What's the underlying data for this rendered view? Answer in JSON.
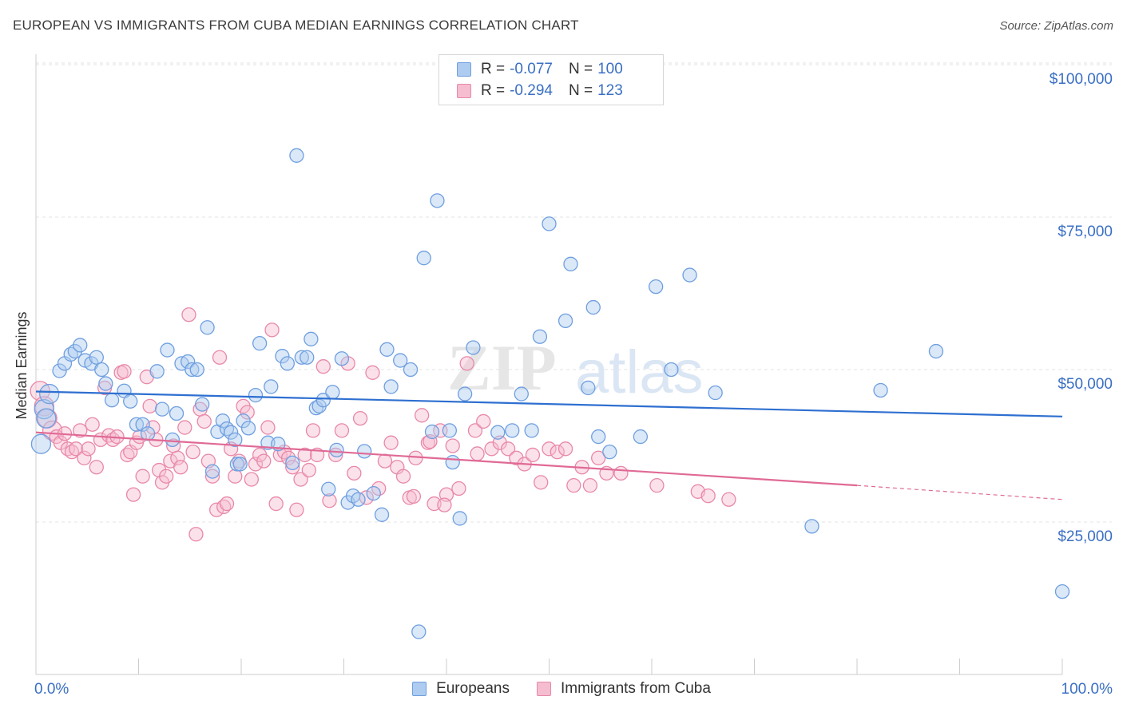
{
  "title": "EUROPEAN VS IMMIGRANTS FROM CUBA MEDIAN EARNINGS CORRELATION CHART",
  "source": "Source: ZipAtlas.com",
  "watermark": {
    "part1": "ZIP",
    "part2": "atlas"
  },
  "colors": {
    "blue": "#6f9fe0",
    "blue_fill": "#aecbf0",
    "blue_line": "#2e6fd0",
    "pink": "#e888a8",
    "pink_fill": "#f6bdd0",
    "pink_line": "#e06a95",
    "axis_label": "#3a6fc4",
    "grid": "#e3e3e3"
  },
  "legend": {
    "rows": [
      {
        "r_label": "R = ",
        "r_value": "-0.077",
        "n_label": "N = ",
        "n_value": "100",
        "color": "#aecbf0",
        "border": "#6f9fe0"
      },
      {
        "r_label": "R = ",
        "r_value": "-0.294",
        "n_label": "N = ",
        "n_value": "123",
        "color": "#f6bdd0",
        "border": "#e888a8"
      }
    ]
  },
  "chart_data": {
    "type": "scatter",
    "title": "EUROPEAN VS IMMIGRANTS FROM CUBA MEDIAN EARNINGS CORRELATION CHART",
    "xlabel": "",
    "ylabel": "Median Earnings",
    "xlim": [
      0,
      100
    ],
    "ylim": [
      0,
      105000
    ],
    "x_tick_labels": [
      "0.0%",
      "100.0%"
    ],
    "y_ticks": [
      25000,
      50000,
      75000,
      100000
    ],
    "y_tick_labels": [
      "$25,000",
      "$50,000",
      "$75,000",
      "$100,000"
    ],
    "grid": true,
    "legend_position": "top-center",
    "series": [
      {
        "name": "Europeans",
        "color": "#6f9fe0",
        "trend": {
          "x": [
            0,
            100
          ],
          "y": [
            46400,
            42300
          ]
        },
        "points": [
          [
            0.5,
            37800
          ],
          [
            0.8,
            43500
          ],
          [
            1,
            42000
          ],
          [
            1.3,
            46000
          ],
          [
            2.3,
            49800
          ],
          [
            2.8,
            51000
          ],
          [
            3.4,
            52500
          ],
          [
            3.8,
            53000
          ],
          [
            4.3,
            54000
          ],
          [
            4.8,
            51500
          ],
          [
            5.4,
            51000
          ],
          [
            5.9,
            52000
          ],
          [
            6.4,
            50000
          ],
          [
            6.8,
            47700
          ],
          [
            7.4,
            45000
          ],
          [
            8.6,
            46500
          ],
          [
            9.2,
            44800
          ],
          [
            9.8,
            41000
          ],
          [
            10.4,
            41000
          ],
          [
            10.9,
            39500
          ],
          [
            11.8,
            49700
          ],
          [
            12.3,
            43500
          ],
          [
            12.8,
            53200
          ],
          [
            13.3,
            38500
          ],
          [
            13.7,
            42800
          ],
          [
            14.2,
            51000
          ],
          [
            14.8,
            51300
          ],
          [
            15.2,
            50000
          ],
          [
            15.7,
            50000
          ],
          [
            16.2,
            44300
          ],
          [
            16.7,
            56900
          ],
          [
            17.2,
            33300
          ],
          [
            17.7,
            39800
          ],
          [
            18.2,
            41600
          ],
          [
            18.6,
            40300
          ],
          [
            19.0,
            39700
          ],
          [
            19.4,
            38500
          ],
          [
            19.6,
            34500
          ],
          [
            19.9,
            34500
          ],
          [
            20.2,
            41600
          ],
          [
            20.7,
            40400
          ],
          [
            21.4,
            45800
          ],
          [
            21.8,
            54300
          ],
          [
            22.6,
            38000
          ],
          [
            22.9,
            47200
          ],
          [
            23.6,
            37800
          ],
          [
            24.0,
            52200
          ],
          [
            24.5,
            51000
          ],
          [
            25.0,
            34700
          ],
          [
            25.4,
            85100
          ],
          [
            25.9,
            52000
          ],
          [
            26.4,
            52000
          ],
          [
            26.8,
            55000
          ],
          [
            27.3,
            43700
          ],
          [
            27.6,
            44000
          ],
          [
            28.0,
            45000
          ],
          [
            28.5,
            30400
          ],
          [
            28.9,
            46300
          ],
          [
            29.3,
            36800
          ],
          [
            29.8,
            51800
          ],
          [
            30.4,
            28200
          ],
          [
            30.9,
            29300
          ],
          [
            31.4,
            28700
          ],
          [
            32.0,
            36600
          ],
          [
            32.9,
            29700
          ],
          [
            33.7,
            26200
          ],
          [
            34.2,
            53300
          ],
          [
            34.6,
            47200
          ],
          [
            35.5,
            51500
          ],
          [
            36.5,
            50000
          ],
          [
            37.3,
            7000
          ],
          [
            37.8,
            68300
          ],
          [
            38.6,
            39800
          ],
          [
            39.1,
            77700
          ],
          [
            40.3,
            40000
          ],
          [
            40.6,
            34800
          ],
          [
            41.3,
            25600
          ],
          [
            41.8,
            46000
          ],
          [
            42.6,
            53600
          ],
          [
            45.0,
            39700
          ],
          [
            46.4,
            40000
          ],
          [
            47.3,
            46000
          ],
          [
            48.3,
            40000
          ],
          [
            49.1,
            55400
          ],
          [
            50.0,
            73900
          ],
          [
            52.1,
            67300
          ],
          [
            53.8,
            47000
          ],
          [
            54.3,
            60200
          ],
          [
            54.8,
            39000
          ],
          [
            55.9,
            36500
          ],
          [
            58.9,
            39000
          ],
          [
            60.4,
            63600
          ],
          [
            61.9,
            50000
          ],
          [
            63.7,
            65500
          ],
          [
            66.2,
            46200
          ],
          [
            75.6,
            24300
          ],
          [
            82.3,
            46600
          ],
          [
            87.7,
            53000
          ],
          [
            100.0,
            13600
          ],
          [
            51.6,
            58000
          ]
        ]
      },
      {
        "name": "Immigrants from Cuba",
        "color": "#e888a8",
        "trend": {
          "x": [
            0,
            80
          ],
          "y": [
            39700,
            31000
          ]
        },
        "trend_dashed": {
          "x": [
            80,
            100
          ],
          "y": [
            31000,
            28700
          ]
        },
        "points": [
          [
            0.4,
            46500
          ],
          [
            0.8,
            44000
          ],
          [
            1.1,
            42000
          ],
          [
            1.6,
            40000
          ],
          [
            2.0,
            39000
          ],
          [
            2.4,
            38000
          ],
          [
            2.8,
            39500
          ],
          [
            3.1,
            37000
          ],
          [
            3.5,
            36500
          ],
          [
            3.9,
            37000
          ],
          [
            4.3,
            40000
          ],
          [
            4.7,
            35500
          ],
          [
            5.1,
            37000
          ],
          [
            5.5,
            41000
          ],
          [
            5.9,
            34000
          ],
          [
            6.3,
            38500
          ],
          [
            6.7,
            47000
          ],
          [
            7.1,
            39200
          ],
          [
            7.5,
            38500
          ],
          [
            7.9,
            39000
          ],
          [
            8.3,
            49500
          ],
          [
            8.6,
            49700
          ],
          [
            8.9,
            36000
          ],
          [
            9.2,
            36500
          ],
          [
            9.5,
            29500
          ],
          [
            9.8,
            38000
          ],
          [
            10.1,
            39000
          ],
          [
            10.4,
            32500
          ],
          [
            10.8,
            48800
          ],
          [
            11.1,
            44000
          ],
          [
            11.4,
            40500
          ],
          [
            11.7,
            38500
          ],
          [
            12.0,
            33500
          ],
          [
            12.3,
            31500
          ],
          [
            12.7,
            32500
          ],
          [
            13.1,
            35000
          ],
          [
            13.4,
            37500
          ],
          [
            13.8,
            35500
          ],
          [
            14.1,
            34000
          ],
          [
            14.5,
            40500
          ],
          [
            14.9,
            59000
          ],
          [
            15.3,
            36500
          ],
          [
            15.6,
            23000
          ],
          [
            16.0,
            43500
          ],
          [
            16.4,
            41500
          ],
          [
            16.8,
            35000
          ],
          [
            17.2,
            32500
          ],
          [
            17.6,
            27000
          ],
          [
            17.9,
            52000
          ],
          [
            18.3,
            27500
          ],
          [
            18.6,
            28000
          ],
          [
            19.0,
            37000
          ],
          [
            19.4,
            32500
          ],
          [
            19.8,
            35000
          ],
          [
            20.2,
            44000
          ],
          [
            20.6,
            43000
          ],
          [
            21.0,
            32000
          ],
          [
            21.4,
            34500
          ],
          [
            21.8,
            36000
          ],
          [
            22.2,
            35000
          ],
          [
            22.6,
            40500
          ],
          [
            23.0,
            56500
          ],
          [
            23.4,
            28000
          ],
          [
            23.8,
            36000
          ],
          [
            24.2,
            36500
          ],
          [
            24.6,
            35500
          ],
          [
            25.0,
            34000
          ],
          [
            25.4,
            27000
          ],
          [
            25.8,
            32000
          ],
          [
            26.2,
            36000
          ],
          [
            26.6,
            33500
          ],
          [
            27.0,
            40000
          ],
          [
            27.4,
            36000
          ],
          [
            28.0,
            50500
          ],
          [
            28.6,
            28500
          ],
          [
            29.2,
            36000
          ],
          [
            29.8,
            40000
          ],
          [
            30.4,
            51000
          ],
          [
            31.0,
            33000
          ],
          [
            31.6,
            42000
          ],
          [
            32.2,
            29000
          ],
          [
            32.8,
            49500
          ],
          [
            33.4,
            30500
          ],
          [
            34.0,
            35000
          ],
          [
            34.6,
            38000
          ],
          [
            35.2,
            34000
          ],
          [
            35.8,
            32500
          ],
          [
            36.4,
            29000
          ],
          [
            37.0,
            35500
          ],
          [
            37.6,
            42500
          ],
          [
            38.2,
            38000
          ],
          [
            38.8,
            28000
          ],
          [
            39.4,
            40000
          ],
          [
            40.0,
            29500
          ],
          [
            40.6,
            37500
          ],
          [
            41.2,
            30500
          ],
          [
            42.0,
            51000
          ],
          [
            42.8,
            40000
          ],
          [
            43.6,
            41500
          ],
          [
            44.4,
            37000
          ],
          [
            45.2,
            38000
          ],
          [
            46.0,
            37000
          ],
          [
            46.8,
            35500
          ],
          [
            47.6,
            34500
          ],
          [
            48.4,
            36000
          ],
          [
            49.2,
            31500
          ],
          [
            50.0,
            37000
          ],
          [
            50.8,
            36500
          ],
          [
            51.6,
            37000
          ],
          [
            52.4,
            31000
          ],
          [
            53.2,
            34000
          ],
          [
            54.0,
            31000
          ],
          [
            54.8,
            35500
          ],
          [
            55.6,
            33000
          ],
          [
            57.0,
            33000
          ],
          [
            60.5,
            31000
          ],
          [
            64.5,
            30000
          ],
          [
            65.5,
            29300
          ],
          [
            67.5,
            28700
          ],
          [
            39.8,
            27800
          ],
          [
            36.8,
            29200
          ],
          [
            38.4,
            38200
          ],
          [
            43.0,
            36200
          ]
        ]
      }
    ]
  },
  "axes": {
    "ylabel": "Median Earnings",
    "x_left_label": "0.0%",
    "x_right_label": "100.0%",
    "y_labels": [
      "$25,000",
      "$50,000",
      "$75,000",
      "$100,000"
    ]
  },
  "bottom_legend": {
    "items": [
      {
        "label": "Europeans",
        "color": "#aecbf0",
        "border": "#6f9fe0"
      },
      {
        "label": "Immigrants from Cuba",
        "color": "#f6bdd0",
        "border": "#e888a8"
      }
    ]
  }
}
